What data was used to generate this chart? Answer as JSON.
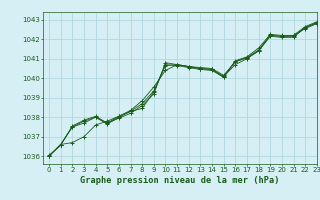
{
  "title": "Graphe pression niveau de la mer (hPa)",
  "bg_color": "#d6eff5",
  "grid_color": "#b0d8e0",
  "line_color": "#1a5c1a",
  "xlim": [
    -0.5,
    23
  ],
  "ylim": [
    1035.6,
    1043.4
  ],
  "yticks": [
    1036,
    1037,
    1038,
    1039,
    1040,
    1041,
    1042,
    1043
  ],
  "xticks": [
    0,
    1,
    2,
    3,
    4,
    5,
    6,
    7,
    8,
    9,
    10,
    11,
    12,
    13,
    14,
    15,
    16,
    17,
    18,
    19,
    20,
    21,
    22,
    23
  ],
  "series": [
    [
      1036.0,
      1036.6,
      1036.7,
      1037.0,
      1037.6,
      1037.8,
      1038.05,
      1038.3,
      1038.45,
      1039.3,
      1040.65,
      1040.7,
      1040.6,
      1040.5,
      1040.45,
      1040.1,
      1040.7,
      1041.0,
      1041.4,
      1042.2,
      1042.15,
      1042.2,
      1042.55,
      1042.8
    ],
    [
      1036.05,
      1036.55,
      1037.55,
      1037.85,
      1038.05,
      1037.7,
      1038.05,
      1038.35,
      1038.85,
      1039.55,
      1040.4,
      1040.7,
      1040.6,
      1040.5,
      1040.45,
      1040.05,
      1040.9,
      1041.1,
      1041.55,
      1042.25,
      1042.2,
      1042.2,
      1042.65,
      1042.9
    ],
    [
      1036.0,
      1036.6,
      1037.5,
      1037.7,
      1038.0,
      1037.7,
      1037.95,
      1038.2,
      1038.6,
      1039.2,
      1040.8,
      1040.7,
      1040.6,
      1040.55,
      1040.5,
      1040.15,
      1040.85,
      1041.05,
      1041.45,
      1042.2,
      1042.15,
      1042.15,
      1042.6,
      1042.85
    ],
    [
      1036.0,
      1036.6,
      1037.5,
      1037.8,
      1038.0,
      1037.65,
      1038.0,
      1038.3,
      1038.7,
      1039.35,
      1040.7,
      1040.65,
      1040.55,
      1040.45,
      1040.4,
      1040.05,
      1040.85,
      1041.05,
      1041.4,
      1042.15,
      1042.1,
      1042.1,
      1042.6,
      1042.85
    ]
  ],
  "tick_fontsize": 5.0,
  "xlabel_fontsize": 6.2
}
